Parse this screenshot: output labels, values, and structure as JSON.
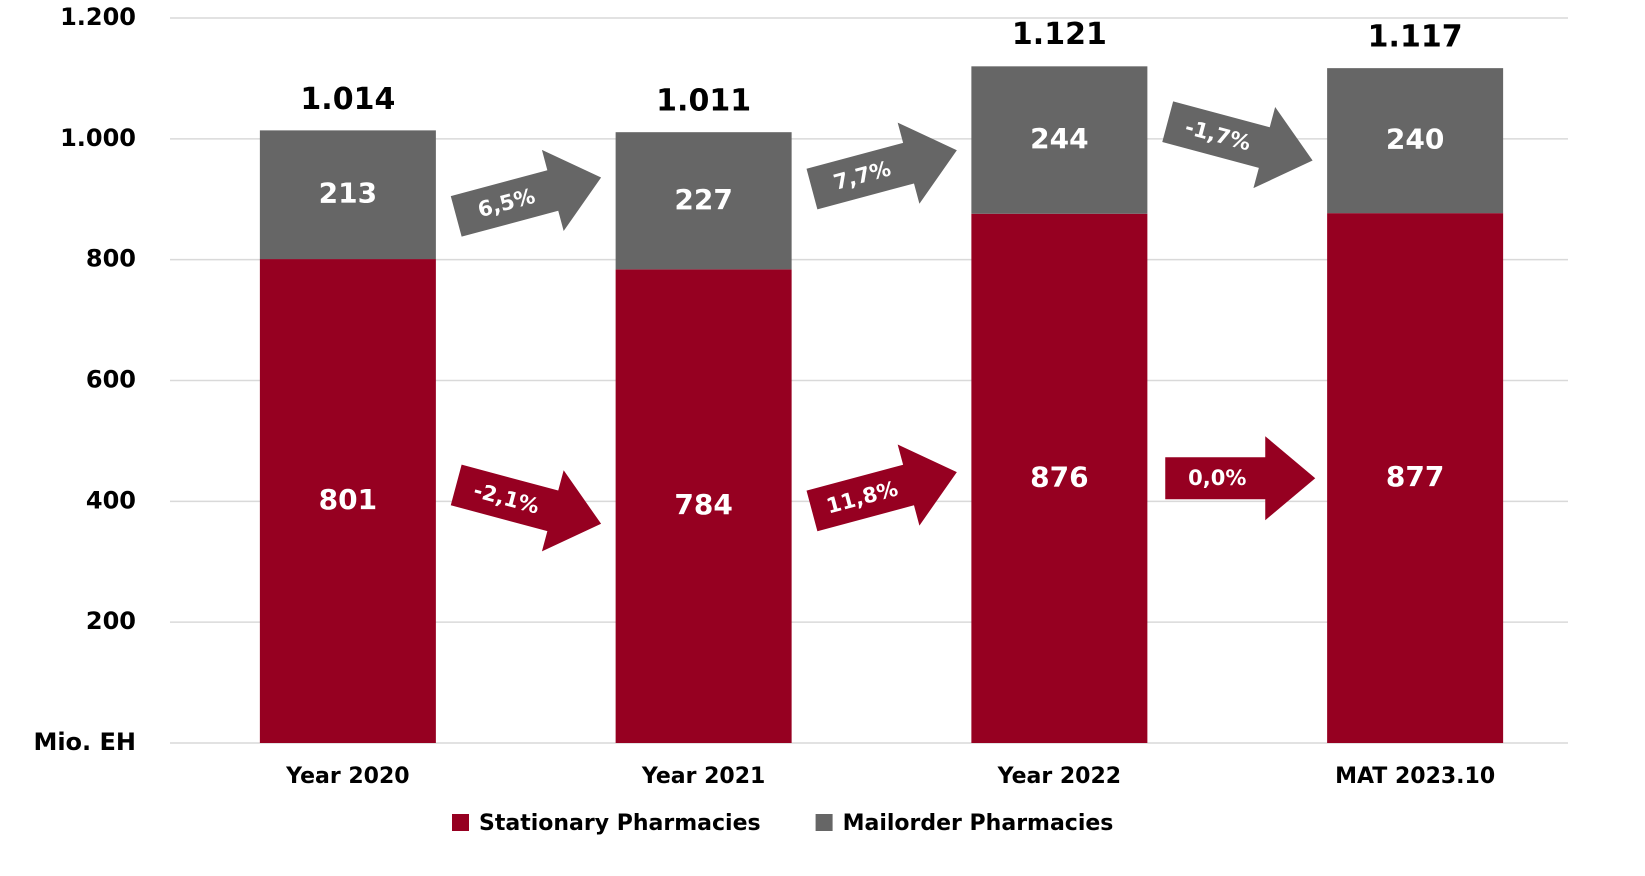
{
  "chart_data": {
    "type": "stacked_bar",
    "categories": [
      "Year 2020",
      "Year 2021",
      "Year 2022",
      "MAT 2023.10"
    ],
    "series": [
      {
        "name": "Stationary Pharmacies",
        "color": "#960021",
        "values": [
          801,
          784,
          876,
          877
        ],
        "changes": [
          "-2,1%",
          "11,8%",
          "0,0%"
        ]
      },
      {
        "name": "Mailorder Pharmacies",
        "color": "#666666",
        "values": [
          213,
          227,
          244,
          240
        ],
        "changes": [
          "6,5%",
          "7,7%",
          "-1,7%"
        ]
      }
    ],
    "totals": {
      "values": [
        1014,
        1011,
        1121,
        1117
      ],
      "value_labels": [
        "1.014",
        "1.011",
        "1.121",
        "1.117"
      ]
    },
    "ylim": [
      0,
      1200
    ],
    "yticks": [
      {
        "value": 0,
        "label": "Mio. EH"
      },
      200,
      400,
      600,
      800,
      {
        "value": 1000,
        "label": "1.000"
      },
      {
        "value": 1200,
        "label": "1.200"
      }
    ],
    "grid": true,
    "legend": "bottom"
  }
}
